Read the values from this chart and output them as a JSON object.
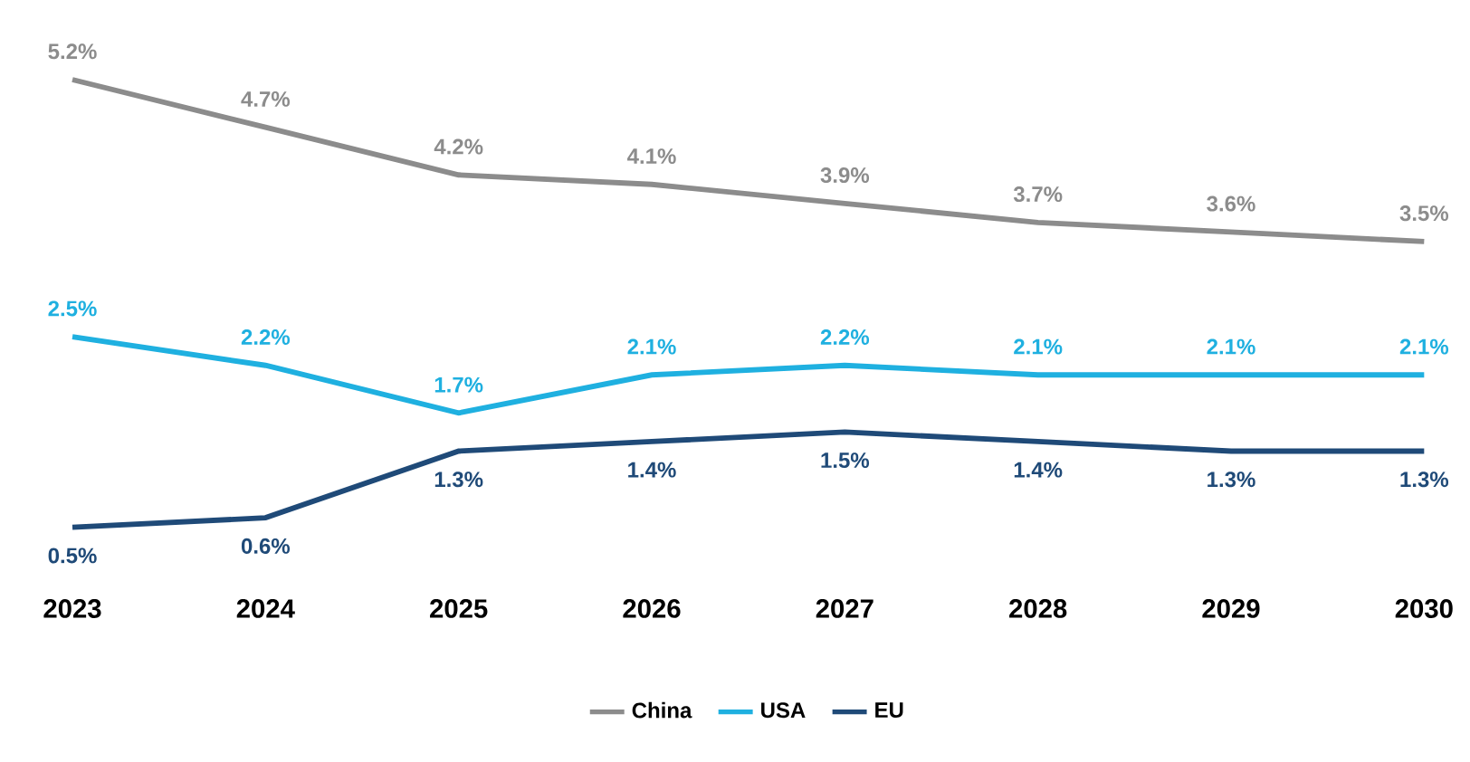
{
  "chart_data": {
    "type": "line",
    "categories": [
      "2023",
      "2024",
      "2025",
      "2026",
      "2027",
      "2028",
      "2029",
      "2030"
    ],
    "series": [
      {
        "name": "China",
        "color": "#8c8c8c",
        "values": [
          5.2,
          4.7,
          4.2,
          4.1,
          3.9,
          3.7,
          3.6,
          3.5
        ],
        "value_labels": [
          "5.2%",
          "4.7%",
          "4.2%",
          "4.1%",
          "3.9%",
          "3.7%",
          "3.6%",
          "3.5%"
        ]
      },
      {
        "name": "USA",
        "color": "#1fb0e0",
        "values": [
          2.5,
          2.2,
          1.7,
          2.1,
          2.2,
          2.1,
          2.1,
          2.1
        ],
        "value_labels": [
          "2.5%",
          "2.2%",
          "1.7%",
          "2.1%",
          "2.2%",
          "2.1%",
          "2.1%",
          "2.1%"
        ]
      },
      {
        "name": "EU",
        "color": "#1f4a78",
        "values": [
          0.5,
          0.6,
          1.3,
          1.4,
          1.5,
          1.4,
          1.3,
          1.3
        ],
        "value_labels": [
          "0.5%",
          "0.6%",
          "1.3%",
          "1.4%",
          "1.5%",
          "1.4%",
          "1.3%",
          "1.3%"
        ]
      }
    ],
    "tick_labels": "x",
    "grid": false,
    "legend": "bottom",
    "marker": "none",
    "line_style": "solid"
  }
}
